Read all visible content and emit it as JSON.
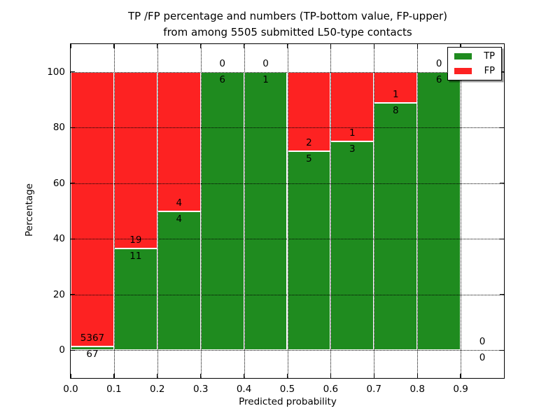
{
  "chart_data": {
    "type": "bar",
    "variant": "stacked-percentage",
    "title_line1": "TP /FP percentage and numbers (TP-bottom value, FP-upper)",
    "title_line2": "from among 5505 submitted L50-type contacts",
    "xlabel": "Predicted probability",
    "ylabel": "Percentage",
    "xlim": [
      0.0,
      1.0
    ],
    "ylim": [
      -10,
      110
    ],
    "grid": true,
    "x_ticks": [
      {
        "value": 0.0,
        "label": "0.0"
      },
      {
        "value": 0.1,
        "label": "0.1"
      },
      {
        "value": 0.2,
        "label": "0.2"
      },
      {
        "value": 0.3,
        "label": "0.3"
      },
      {
        "value": 0.4,
        "label": "0.4"
      },
      {
        "value": 0.5,
        "label": "0.5"
      },
      {
        "value": 0.6,
        "label": "0.6"
      },
      {
        "value": 0.7,
        "label": "0.7"
      },
      {
        "value": 0.8,
        "label": "0.8"
      },
      {
        "value": 0.9,
        "label": "0.9"
      }
    ],
    "y_ticks": [
      {
        "value": 0,
        "label": "0"
      },
      {
        "value": 20,
        "label": "20"
      },
      {
        "value": 40,
        "label": "40"
      },
      {
        "value": 60,
        "label": "60"
      },
      {
        "value": 80,
        "label": "80"
      },
      {
        "value": 100,
        "label": "100"
      }
    ],
    "legend": {
      "position": "upper-right",
      "items": [
        {
          "label": "TP",
          "color": "#1f8b1f"
        },
        {
          "label": "FP",
          "color": "#fd2222"
        }
      ]
    },
    "colors": {
      "tp": "#1f8b1f",
      "fp": "#fd2222",
      "grid": "#000000",
      "bar_edge": "#ffffff"
    },
    "bins": [
      {
        "x_range": [
          0.0,
          0.1
        ],
        "tp": 67,
        "fp": 5367
      },
      {
        "x_range": [
          0.1,
          0.2
        ],
        "tp": 11,
        "fp": 19
      },
      {
        "x_range": [
          0.2,
          0.3
        ],
        "tp": 4,
        "fp": 4
      },
      {
        "x_range": [
          0.3,
          0.4
        ],
        "tp": 6,
        "fp": 0
      },
      {
        "x_range": [
          0.4,
          0.5
        ],
        "tp": 1,
        "fp": 0
      },
      {
        "x_range": [
          0.5,
          0.6
        ],
        "tp": 5,
        "fp": 2
      },
      {
        "x_range": [
          0.6,
          0.7
        ],
        "tp": 3,
        "fp": 1
      },
      {
        "x_range": [
          0.7,
          0.8
        ],
        "tp": 8,
        "fp": 1
      },
      {
        "x_range": [
          0.8,
          0.9
        ],
        "tp": 6,
        "fp": 0
      },
      {
        "x_range": [
          0.9,
          1.0
        ],
        "tp": 0,
        "fp": 0
      }
    ]
  }
}
